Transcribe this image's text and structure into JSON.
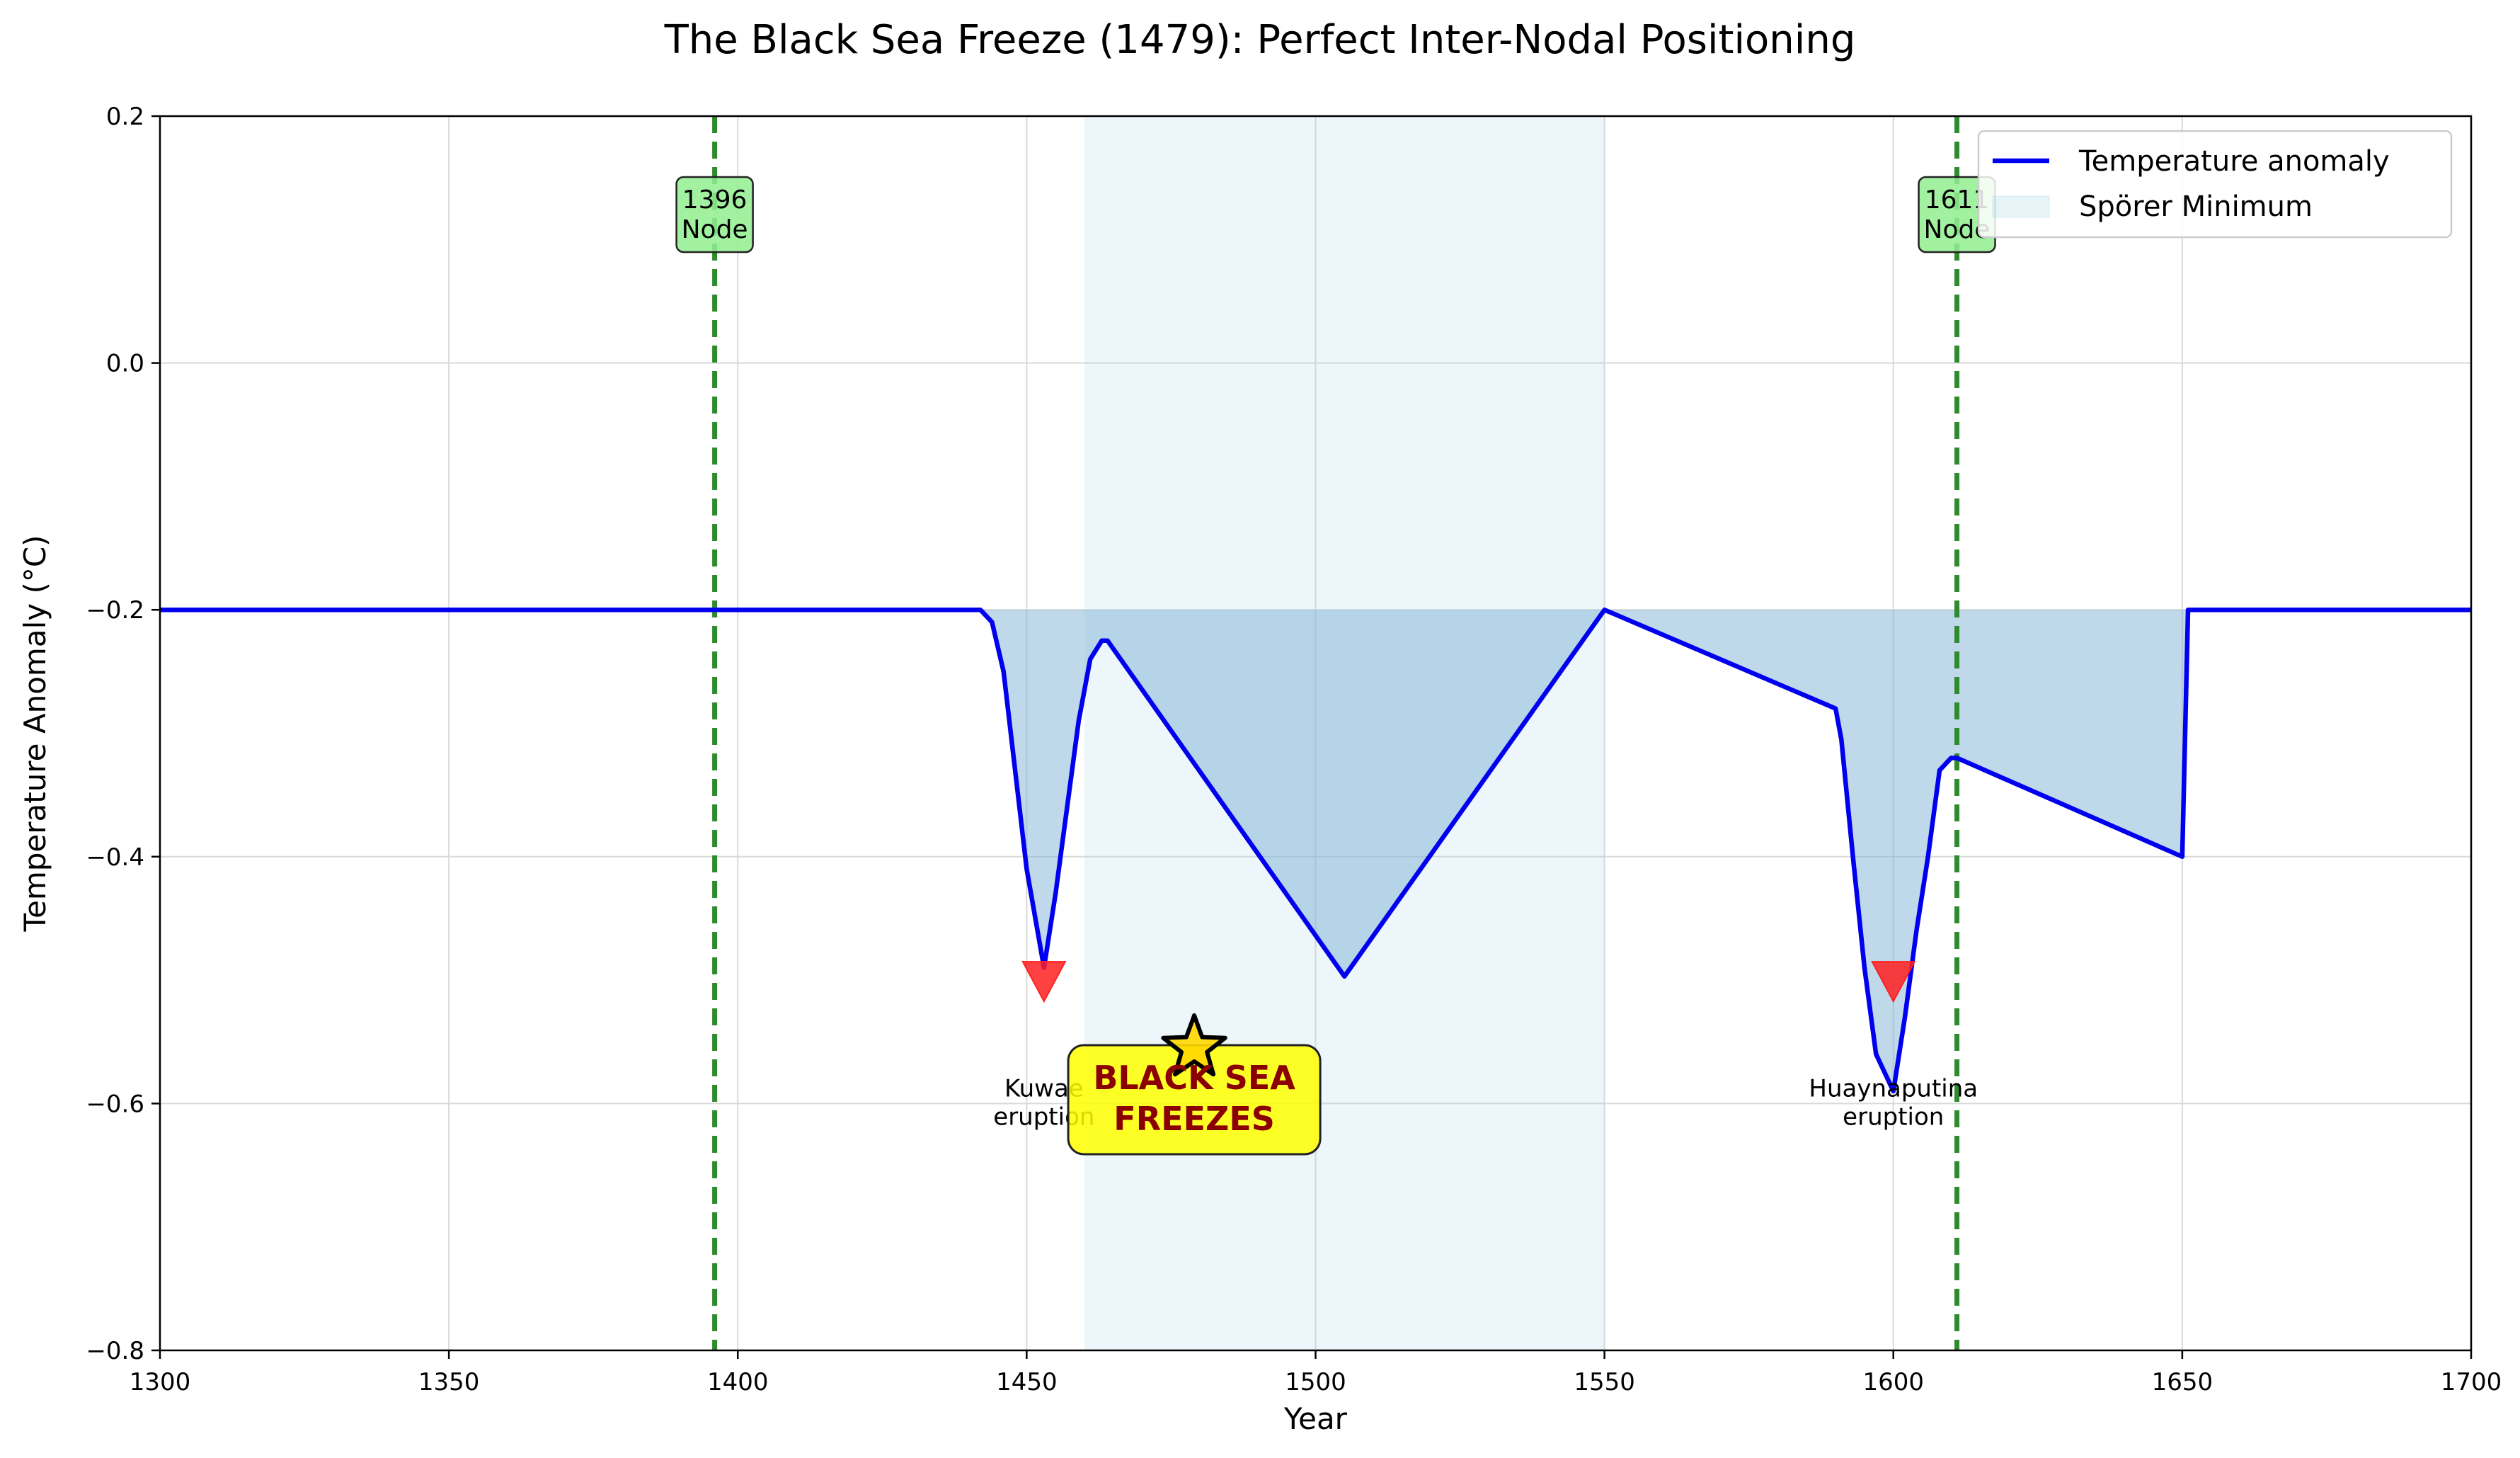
{
  "chart_data": {
    "type": "line",
    "title": "The Black Sea Freeze (1479): Perfect Inter-Nodal Positioning",
    "xlabel": "Year",
    "ylabel": "Temperature Anomaly (°C)",
    "xlim": [
      1300,
      1700
    ],
    "ylim": [
      -0.8,
      0.2
    ],
    "grid": true,
    "x_ticks": [
      1300,
      1350,
      1400,
      1450,
      1500,
      1550,
      1600,
      1650,
      1700
    ],
    "x_tick_labels": [
      "1300",
      "1350",
      "1400",
      "1450",
      "1500",
      "1550",
      "1600",
      "1650",
      "1700"
    ],
    "y_ticks": [
      -0.8,
      -0.6,
      -0.4,
      -0.2,
      0.0,
      0.2
    ],
    "y_tick_labels": [
      "−0.8",
      "−0.6",
      "−0.4",
      "−0.2",
      "0.0",
      "0.2"
    ],
    "baseline": -0.2,
    "series": [
      {
        "name": "Temperature anomaly",
        "color": "#0000ee",
        "x": [
          1300,
          1442,
          1444,
          1446,
          1448,
          1450,
          1453,
          1455,
          1457,
          1459,
          1461,
          1463,
          1464,
          1505,
          1550,
          1590,
          1591,
          1593,
          1595,
          1597,
          1600,
          1602,
          1604,
          1606,
          1608,
          1610,
          1611,
          1650,
          1651,
          1700
        ],
        "y": [
          -0.2,
          -0.2,
          -0.21,
          -0.25,
          -0.33,
          -0.41,
          -0.49,
          -0.43,
          -0.36,
          -0.29,
          -0.24,
          -0.225,
          -0.225,
          -0.497,
          -0.2,
          -0.28,
          -0.305,
          -0.4,
          -0.49,
          -0.56,
          -0.59,
          -0.53,
          -0.46,
          -0.4,
          -0.33,
          -0.32,
          -0.32,
          -0.4,
          -0.2,
          -0.2
        ]
      }
    ],
    "shaded_regions": [
      {
        "name": "Spörer Minimum",
        "x_start": 1460,
        "x_end": 1550,
        "color": "#add8e6"
      }
    ],
    "vertical_lines": [
      {
        "x": 1396,
        "label_line1": "1396",
        "label_line2": "Node",
        "color": "#2e8b2e"
      },
      {
        "x": 1611,
        "label_line1": "1611",
        "label_line2": "Node",
        "color": "#2e8b2e"
      }
    ],
    "eruptions": [
      {
        "x": 1453,
        "y": -0.5,
        "label_line1": "Kuwae",
        "label_line2": "eruption"
      },
      {
        "x": 1600,
        "y": -0.5,
        "label_line1": "Huaynaputina",
        "label_line2": "eruption"
      }
    ],
    "highlight": {
      "x": 1479,
      "y": -0.555,
      "label_line1": "BLACK SEA",
      "label_line2": "FREEZES"
    },
    "legend": {
      "placement": "top-right",
      "entries": [
        "Temperature anomaly",
        "Spörer Minimum"
      ]
    }
  }
}
